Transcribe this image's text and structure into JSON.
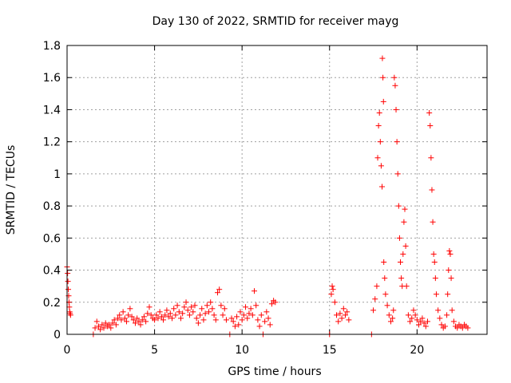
{
  "chart_data": {
    "type": "scatter",
    "title": "Day 130 of 2022, SRMTID for receiver mayg",
    "xlabel": "GPS time / hours",
    "ylabel": "SRMTID / TECUs",
    "xlim": [
      0,
      24
    ],
    "ylim": [
      0,
      1.8
    ],
    "xticks": [
      0,
      5,
      10,
      15,
      20
    ],
    "xtick_labels": [
      "0",
      "5",
      "10",
      "15",
      "20"
    ],
    "yticks": [
      0,
      0.2,
      0.4,
      0.6,
      0.8,
      1,
      1.2,
      1.4,
      1.6,
      1.8
    ],
    "ytick_labels": [
      "0",
      "0.2",
      "0.4",
      "0.6",
      "0.8",
      "1",
      "1.2",
      "1.4",
      "1.6",
      "1.8"
    ],
    "grid": true,
    "marker": "+",
    "series": [
      {
        "name": "SRMTID",
        "color": "#ff0000",
        "points": [
          [
            0.0,
            0.42
          ],
          [
            0.03,
            0.38
          ],
          [
            0.05,
            0.33
          ],
          [
            0.07,
            0.28
          ],
          [
            0.09,
            0.24
          ],
          [
            0.11,
            0.2
          ],
          [
            0.13,
            0.17
          ],
          [
            0.15,
            0.14
          ],
          [
            0.17,
            0.13
          ],
          [
            0.2,
            0.12
          ],
          [
            1.5,
            0.0
          ],
          [
            1.6,
            0.04
          ],
          [
            1.7,
            0.08
          ],
          [
            1.8,
            0.05
          ],
          [
            1.9,
            0.03
          ],
          [
            2.0,
            0.06
          ],
          [
            2.1,
            0.04
          ],
          [
            2.2,
            0.07
          ],
          [
            2.3,
            0.05
          ],
          [
            2.4,
            0.06
          ],
          [
            2.5,
            0.04
          ],
          [
            2.6,
            0.07
          ],
          [
            2.7,
            0.09
          ],
          [
            2.8,
            0.06
          ],
          [
            2.9,
            0.1
          ],
          [
            3.0,
            0.12
          ],
          [
            3.1,
            0.09
          ],
          [
            3.2,
            0.14
          ],
          [
            3.3,
            0.1
          ],
          [
            3.4,
            0.08
          ],
          [
            3.5,
            0.12
          ],
          [
            3.6,
            0.16
          ],
          [
            3.7,
            0.11
          ],
          [
            3.8,
            0.09
          ],
          [
            3.9,
            0.07
          ],
          [
            4.0,
            0.1
          ],
          [
            4.1,
            0.08
          ],
          [
            4.2,
            0.06
          ],
          [
            4.3,
            0.09
          ],
          [
            4.4,
            0.11
          ],
          [
            4.5,
            0.08
          ],
          [
            4.6,
            0.13
          ],
          [
            4.7,
            0.17
          ],
          [
            4.8,
            0.12
          ],
          [
            4.9,
            0.1
          ],
          [
            5.0,
            0.09
          ],
          [
            5.1,
            0.12
          ],
          [
            5.2,
            0.1
          ],
          [
            5.3,
            0.14
          ],
          [
            5.4,
            0.11
          ],
          [
            5.5,
            0.09
          ],
          [
            5.6,
            0.12
          ],
          [
            5.7,
            0.15
          ],
          [
            5.8,
            0.11
          ],
          [
            5.9,
            0.13
          ],
          [
            6.0,
            0.1
          ],
          [
            6.1,
            0.16
          ],
          [
            6.2,
            0.12
          ],
          [
            6.3,
            0.18
          ],
          [
            6.4,
            0.14
          ],
          [
            6.5,
            0.1
          ],
          [
            6.6,
            0.13
          ],
          [
            6.7,
            0.17
          ],
          [
            6.8,
            0.2
          ],
          [
            6.9,
            0.15
          ],
          [
            7.0,
            0.12
          ],
          [
            7.1,
            0.17
          ],
          [
            7.2,
            0.14
          ],
          [
            7.3,
            0.18
          ],
          [
            7.4,
            0.1
          ],
          [
            7.5,
            0.07
          ],
          [
            7.6,
            0.12
          ],
          [
            7.7,
            0.16
          ],
          [
            7.8,
            0.09
          ],
          [
            7.9,
            0.13
          ],
          [
            8.0,
            0.18
          ],
          [
            8.1,
            0.14
          ],
          [
            8.2,
            0.2
          ],
          [
            8.3,
            0.16
          ],
          [
            8.4,
            0.12
          ],
          [
            8.5,
            0.09
          ],
          [
            8.6,
            0.26
          ],
          [
            8.7,
            0.28
          ],
          [
            8.8,
            0.18
          ],
          [
            8.9,
            0.12
          ],
          [
            9.0,
            0.16
          ],
          [
            9.1,
            0.09
          ],
          [
            9.3,
            0.0
          ],
          [
            9.4,
            0.1
          ],
          [
            9.5,
            0.08
          ],
          [
            9.6,
            0.05
          ],
          [
            9.7,
            0.11
          ],
          [
            9.8,
            0.06
          ],
          [
            9.9,
            0.14
          ],
          [
            10.0,
            0.09
          ],
          [
            10.1,
            0.12
          ],
          [
            10.2,
            0.17
          ],
          [
            10.3,
            0.1
          ],
          [
            10.4,
            0.13
          ],
          [
            10.5,
            0.16
          ],
          [
            10.6,
            0.12
          ],
          [
            10.7,
            0.27
          ],
          [
            10.8,
            0.18
          ],
          [
            10.9,
            0.09
          ],
          [
            11.0,
            0.05
          ],
          [
            11.1,
            0.12
          ],
          [
            11.2,
            0.0
          ],
          [
            11.3,
            0.08
          ],
          [
            11.4,
            0.14
          ],
          [
            11.5,
            0.1
          ],
          [
            11.6,
            0.06
          ],
          [
            11.7,
            0.19
          ],
          [
            11.8,
            0.21
          ],
          [
            11.9,
            0.2
          ],
          [
            15.0,
            0.0
          ],
          [
            15.1,
            0.25
          ],
          [
            15.15,
            0.3
          ],
          [
            15.2,
            0.28
          ],
          [
            15.3,
            0.2
          ],
          [
            15.4,
            0.12
          ],
          [
            15.5,
            0.08
          ],
          [
            15.6,
            0.13
          ],
          [
            15.7,
            0.1
          ],
          [
            15.8,
            0.16
          ],
          [
            15.9,
            0.12
          ],
          [
            16.0,
            0.14
          ],
          [
            16.1,
            0.09
          ],
          [
            17.4,
            0.0
          ],
          [
            17.5,
            0.15
          ],
          [
            17.6,
            0.22
          ],
          [
            17.7,
            0.3
          ],
          [
            17.75,
            1.1
          ],
          [
            17.8,
            1.3
          ],
          [
            17.85,
            1.38
          ],
          [
            17.9,
            1.2
          ],
          [
            17.95,
            1.05
          ],
          [
            18.0,
            0.92
          ],
          [
            18.02,
            1.72
          ],
          [
            18.05,
            1.6
          ],
          [
            18.08,
            1.45
          ],
          [
            18.1,
            0.45
          ],
          [
            18.15,
            0.35
          ],
          [
            18.2,
            0.25
          ],
          [
            18.3,
            0.18
          ],
          [
            18.4,
            0.12
          ],
          [
            18.5,
            0.08
          ],
          [
            18.6,
            0.1
          ],
          [
            18.65,
            0.15
          ],
          [
            18.7,
            1.6
          ],
          [
            18.75,
            1.55
          ],
          [
            18.8,
            1.4
          ],
          [
            18.85,
            1.2
          ],
          [
            18.9,
            1.0
          ],
          [
            18.95,
            0.8
          ],
          [
            19.0,
            0.6
          ],
          [
            19.05,
            0.45
          ],
          [
            19.1,
            0.35
          ],
          [
            19.15,
            0.3
          ],
          [
            19.2,
            0.5
          ],
          [
            19.25,
            0.7
          ],
          [
            19.3,
            0.78
          ],
          [
            19.35,
            0.55
          ],
          [
            19.4,
            0.3
          ],
          [
            19.5,
            0.12
          ],
          [
            19.6,
            0.08
          ],
          [
            19.7,
            0.1
          ],
          [
            19.8,
            0.15
          ],
          [
            19.9,
            0.12
          ],
          [
            20.0,
            0.09
          ],
          [
            20.1,
            0.06
          ],
          [
            20.2,
            0.08
          ],
          [
            20.3,
            0.1
          ],
          [
            20.4,
            0.07
          ],
          [
            20.5,
            0.05
          ],
          [
            20.6,
            0.08
          ],
          [
            20.7,
            1.38
          ],
          [
            20.75,
            1.3
          ],
          [
            20.8,
            1.1
          ],
          [
            20.85,
            0.9
          ],
          [
            20.9,
            0.7
          ],
          [
            20.95,
            0.5
          ],
          [
            21.0,
            0.45
          ],
          [
            21.05,
            0.35
          ],
          [
            21.1,
            0.25
          ],
          [
            21.2,
            0.15
          ],
          [
            21.3,
            0.1
          ],
          [
            21.4,
            0.06
          ],
          [
            21.5,
            0.04
          ],
          [
            21.6,
            0.05
          ],
          [
            21.7,
            0.12
          ],
          [
            21.75,
            0.25
          ],
          [
            21.8,
            0.4
          ],
          [
            21.85,
            0.52
          ],
          [
            21.9,
            0.5
          ],
          [
            21.95,
            0.35
          ],
          [
            22.0,
            0.15
          ],
          [
            22.1,
            0.08
          ],
          [
            22.2,
            0.05
          ],
          [
            22.3,
            0.04
          ],
          [
            22.4,
            0.06
          ],
          [
            22.5,
            0.05
          ],
          [
            22.6,
            0.04
          ],
          [
            22.7,
            0.06
          ],
          [
            22.8,
            0.05
          ],
          [
            22.9,
            0.04
          ]
        ]
      }
    ]
  }
}
